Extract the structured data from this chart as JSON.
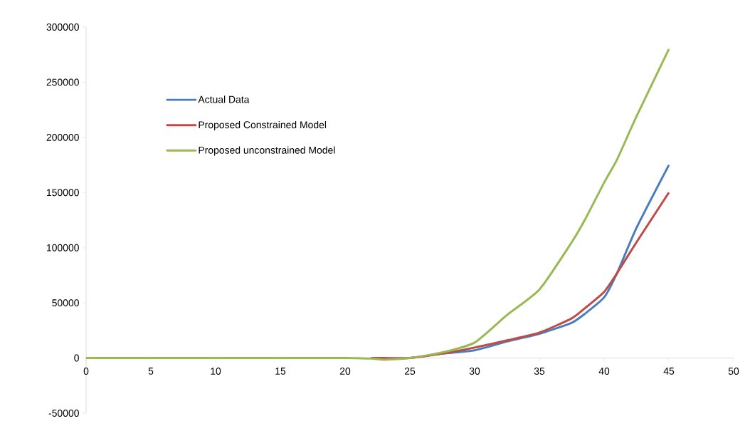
{
  "chart_data": {
    "type": "line",
    "x": [
      0,
      5,
      10,
      15,
      20,
      22,
      23,
      25,
      27.5,
      30,
      32.5,
      35,
      37.5,
      38.5,
      40,
      41,
      42.5,
      45
    ],
    "series": [
      {
        "name": "Actual Data",
        "color": "#4a7ebb",
        "values": [
          null,
          null,
          null,
          null,
          null,
          null,
          null,
          0,
          4000,
          7000,
          15000,
          22000,
          32000,
          40000,
          55000,
          77000,
          118000,
          175000
        ]
      },
      {
        "name": "Proposed Constrained Model",
        "color": "#be4b48",
        "values": [
          null,
          null,
          null,
          null,
          null,
          0,
          0,
          0,
          4000,
          9500,
          16000,
          23000,
          36000,
          45000,
          60000,
          77000,
          105000,
          150000
        ]
      },
      {
        "name": "Proposed unconstrained Model",
        "color": "#98b954",
        "values": [
          0,
          0,
          0,
          0,
          0,
          -500,
          -1500,
          0,
          5000,
          14000,
          39000,
          62000,
          105000,
          125000,
          159000,
          180000,
          219000,
          280000
        ]
      }
    ],
    "xlim": [
      0,
      50
    ],
    "xticks": [
      0,
      5,
      10,
      15,
      20,
      25,
      30,
      35,
      40,
      45,
      50
    ],
    "ylim": [
      -50000,
      300000
    ],
    "yticks": [
      -50000,
      0,
      50000,
      100000,
      150000,
      200000,
      250000,
      300000
    ],
    "grid": false,
    "legend": "top left",
    "marker": "none",
    "line_style": "solid"
  }
}
